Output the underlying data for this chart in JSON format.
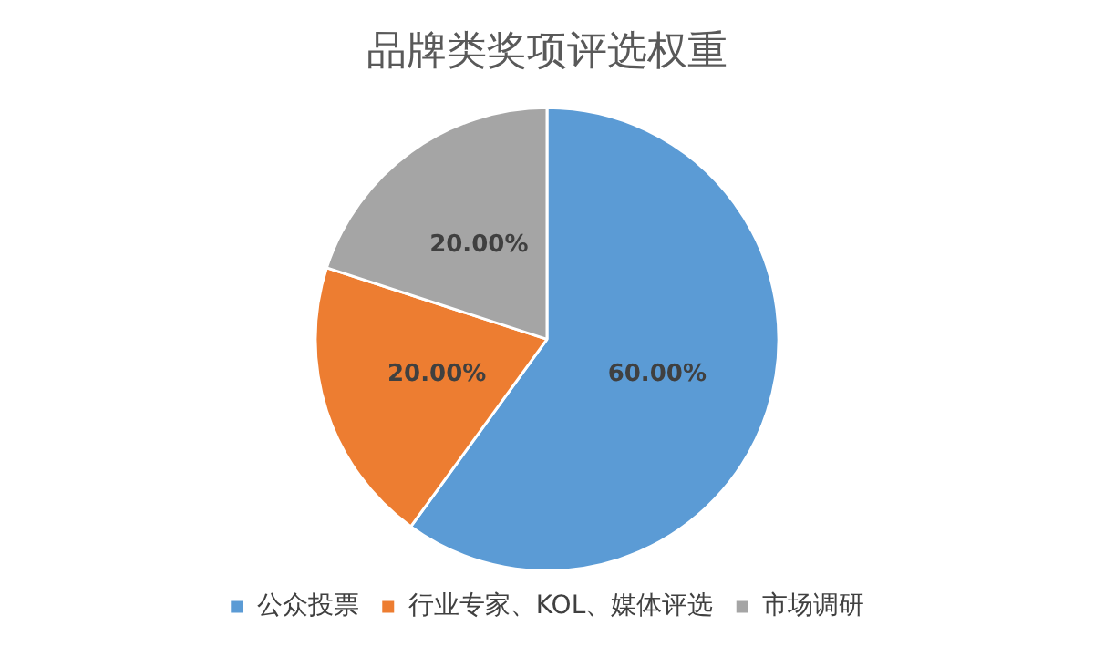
{
  "chart_data": {
    "type": "pie",
    "title": "品牌类奖项评选权重",
    "categories": [
      "公众投票",
      "行业专家、KOL、媒体评选",
      "市场调研"
    ],
    "values": [
      60,
      20,
      20
    ],
    "colors": [
      "#5b9bd5",
      "#ed7d31",
      "#a5a5a5"
    ],
    "value_labels": [
      "60.00%",
      "20.00%",
      "20.00%"
    ],
    "legend": "bottom"
  }
}
